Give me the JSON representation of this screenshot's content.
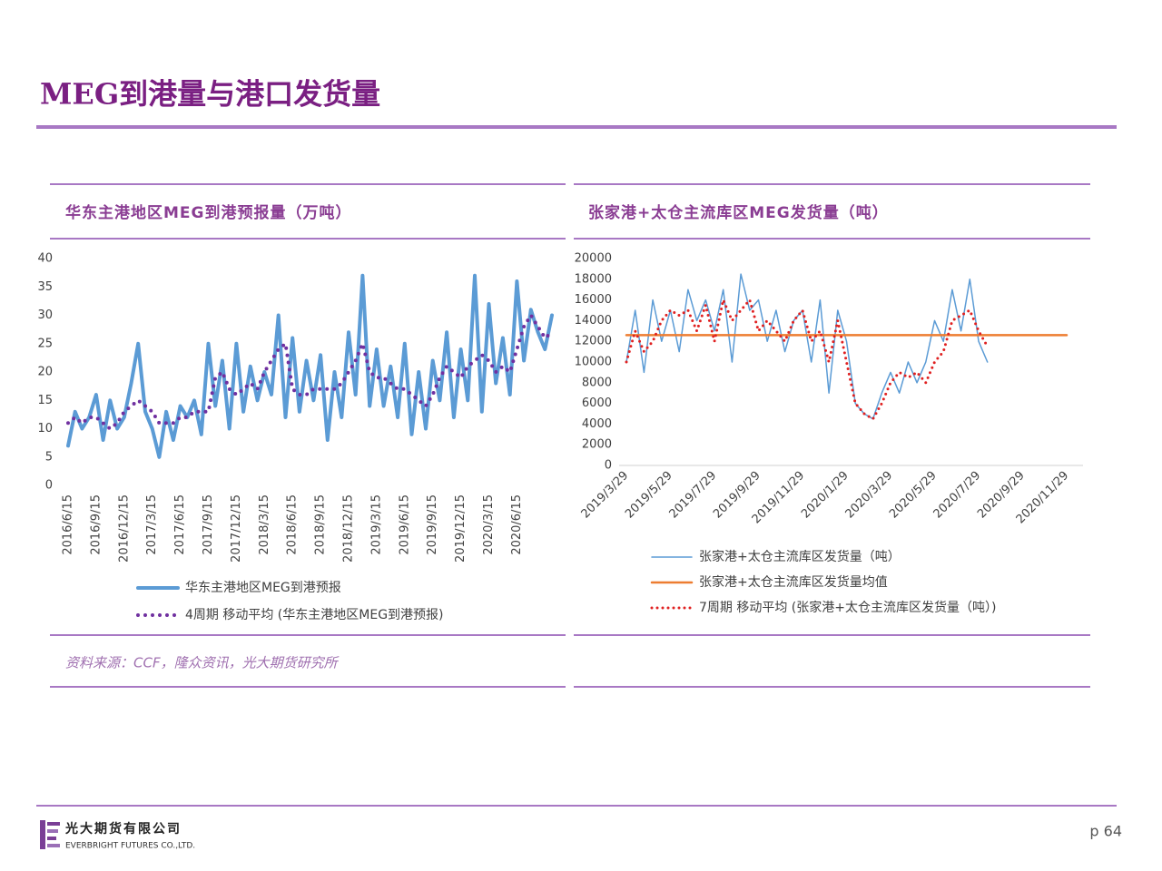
{
  "title": "MEG到港量与港口发货量",
  "chart_data": [
    {
      "type": "line",
      "title": "华东主港地区MEG到港预报量（万吨）",
      "categories": [
        "2016/6/15",
        null,
        null,
        null,
        "2016/9/15",
        null,
        null,
        null,
        "2016/12/15",
        null,
        null,
        null,
        "2017/3/15",
        null,
        null,
        null,
        "2017/6/15",
        null,
        null,
        null,
        "2017/9/15",
        null,
        null,
        null,
        "2017/12/15",
        null,
        null,
        null,
        "2018/3/15",
        null,
        null,
        null,
        "2018/6/15",
        null,
        null,
        null,
        "2018/9/15",
        null,
        null,
        null,
        "2018/12/15",
        null,
        null,
        null,
        "2019/3/15",
        null,
        null,
        null,
        "2019/6/15",
        null,
        null,
        null,
        "2019/9/15",
        null,
        null,
        null,
        "2019/12/15",
        null,
        null,
        null,
        "2020/3/15",
        null,
        null,
        null,
        "2020/6/15",
        null,
        null,
        null,
        null,
        null
      ],
      "ylim": [
        0,
        40
      ],
      "yticks": [
        0,
        5,
        10,
        15,
        20,
        25,
        30,
        35,
        40
      ],
      "series": [
        {
          "name": "华东主港地区MEG到港预报",
          "color": "#5b9bd5",
          "line_style": "solid",
          "values": [
            7,
            13,
            10,
            12,
            16,
            8,
            15,
            10,
            12,
            18,
            25,
            13,
            10,
            5,
            13,
            8,
            14,
            12,
            15,
            9,
            25,
            14,
            22,
            10,
            25,
            13,
            21,
            15,
            20,
            16,
            30,
            12,
            26,
            13,
            22,
            15,
            23,
            8,
            20,
            12,
            27,
            16,
            37,
            14,
            24,
            14,
            21,
            12,
            25,
            9,
            20,
            10,
            22,
            15,
            27,
            12,
            24,
            15,
            37,
            13,
            32,
            18,
            26,
            16,
            36,
            22,
            31,
            27,
            24,
            30
          ]
        },
        {
          "name": "4周期 移动平均 (华东主港地区MEG到港预报)",
          "color": "#7030a0",
          "line_style": "dotted",
          "values": [
            11,
            12,
            11,
            12,
            12,
            11,
            10,
            11,
            13,
            14,
            15,
            14,
            13,
            11,
            11,
            11,
            12,
            12,
            13,
            13,
            13,
            19,
            20,
            17,
            16,
            17,
            18,
            17,
            20,
            22,
            24,
            25,
            17,
            16,
            16,
            17,
            17,
            17,
            17,
            18,
            20,
            22,
            25,
            20,
            19,
            19,
            18,
            17,
            17,
            16,
            15,
            14,
            16,
            19,
            21,
            20,
            19,
            21,
            22,
            23,
            22,
            20,
            21,
            20,
            24,
            28,
            30,
            28,
            26,
            27
          ]
        }
      ]
    },
    {
      "type": "line",
      "title": "张家港+太仓主流库区MEG发货量（吨）",
      "categories": [
        "2019/3/29",
        null,
        null,
        null,
        null,
        "2019/5/29",
        null,
        null,
        null,
        null,
        "2019/7/29",
        null,
        null,
        null,
        null,
        "2019/9/29",
        null,
        null,
        null,
        null,
        "2019/11/29",
        null,
        null,
        null,
        null,
        "2020/1/29",
        null,
        null,
        null,
        null,
        "2020/3/29",
        null,
        null,
        null,
        null,
        "2020/5/29",
        null,
        null,
        null,
        null,
        "2020/7/29",
        null,
        null,
        null,
        null,
        "2020/9/29",
        null,
        null,
        null,
        null,
        "2020/11/29"
      ],
      "ylim": [
        0,
        20000
      ],
      "yticks": [
        0,
        2000,
        4000,
        6000,
        8000,
        10000,
        12000,
        14000,
        16000,
        18000,
        20000
      ],
      "series": [
        {
          "name": "张家港+太仓主流库区发货量（吨）",
          "color": "#5b9bd5",
          "line_style": "solid",
          "values": [
            10000,
            15000,
            9000,
            16000,
            12000,
            15000,
            11000,
            17000,
            14000,
            16000,
            13000,
            17000,
            10000,
            18500,
            15000,
            16000,
            12000,
            15000,
            11000,
            14000,
            15000,
            10000,
            16000,
            7000,
            15000,
            12000,
            6000,
            5000,
            4500,
            7000,
            9000,
            7000,
            10000,
            8000,
            10000,
            14000,
            12000,
            17000,
            13000,
            18000,
            12000,
            10000,
            null,
            null,
            null,
            null,
            null,
            null,
            null,
            null,
            null
          ]
        },
        {
          "name": "张家港+太仓主流库区发货量均值",
          "color": "#ed7d31",
          "line_style": "solid",
          "values": [
            12600,
            12600,
            12600,
            12600,
            12600,
            12600,
            12600,
            12600,
            12600,
            12600,
            12600,
            12600,
            12600,
            12600,
            12600,
            12600,
            12600,
            12600,
            12600,
            12600,
            12600,
            12600,
            12600,
            12600,
            12600,
            12600,
            12600,
            12600,
            12600,
            12600,
            12600,
            12600,
            12600,
            12600,
            12600,
            12600,
            12600,
            12600,
            12600,
            12600,
            12600,
            12600,
            12600,
            12600,
            12600,
            12600,
            12600,
            12600,
            12600,
            12600,
            12600
          ]
        },
        {
          "name": "7周期 移动平均 (张家港+太仓主流库区发货量（吨）)",
          "color": "#e02020",
          "line_style": "dotted",
          "values": [
            10000,
            13000,
            11000,
            12000,
            14000,
            15000,
            14500,
            15000,
            13000,
            15500,
            12000,
            16000,
            14000,
            15000,
            16000,
            13000,
            14000,
            13000,
            12000,
            14000,
            15000,
            12000,
            13000,
            10000,
            14000,
            10000,
            6000,
            5000,
            4500,
            6000,
            8000,
            9000,
            8500,
            9000,
            8000,
            10000,
            11000,
            14000,
            14500,
            15000,
            13000,
            11500,
            null,
            null,
            null,
            null,
            null,
            null,
            null,
            null,
            null
          ]
        }
      ]
    }
  ],
  "source": "资料来源：CCF，隆众资讯，光大期货研究所",
  "footer": {
    "company_cn": "光大期货有限公司",
    "company_en": "EVERBRIGHT FUTURES CO.,LTD.",
    "page": "p 64"
  }
}
